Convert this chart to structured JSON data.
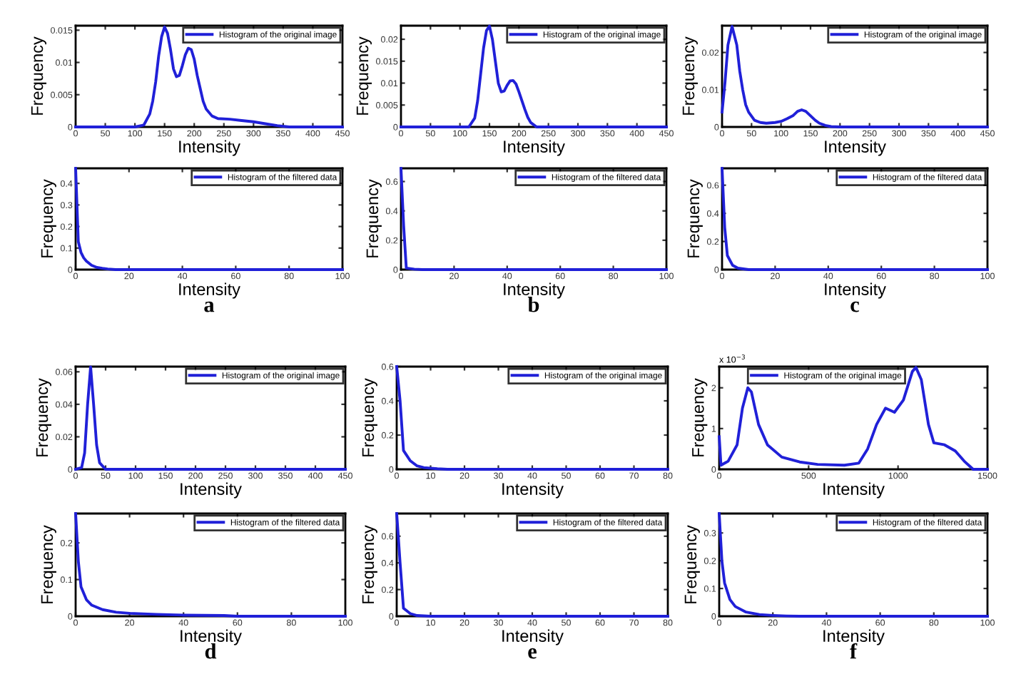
{
  "chart_data": [
    {
      "type": "line",
      "xlabel": "Intensity",
      "ylabel": "Frequency",
      "xlim": [
        0,
        450
      ],
      "xticks": [
        0,
        50,
        100,
        150,
        200,
        250,
        300,
        350,
        400,
        450
      ],
      "ylim": [
        0,
        0.0157
      ],
      "yticks": [
        0,
        0.005,
        0.01,
        0.015
      ],
      "grid": false,
      "legend": "top right",
      "series": [
        {
          "name": "Histogram of the original image",
          "color": "#2020d8",
          "x": [
            0,
            100,
            115,
            125,
            130,
            135,
            140,
            145,
            150,
            155,
            160,
            165,
            170,
            175,
            180,
            185,
            190,
            195,
            200,
            205,
            210,
            215,
            220,
            230,
            240,
            260,
            280,
            300,
            320,
            340,
            360,
            450
          ],
          "values": [
            0,
            0,
            0.0003,
            0.002,
            0.004,
            0.007,
            0.011,
            0.014,
            0.0155,
            0.0145,
            0.012,
            0.009,
            0.0078,
            0.008,
            0.0095,
            0.0112,
            0.0122,
            0.012,
            0.0105,
            0.008,
            0.006,
            0.004,
            0.0028,
            0.0017,
            0.0013,
            0.0012,
            0.001,
            0.0008,
            0.0005,
            0.0002,
            0,
            0
          ]
        }
      ]
    },
    {
      "type": "line",
      "xlabel": "Intensity",
      "ylabel": "Frequency",
      "xlim": [
        0,
        450
      ],
      "xticks": [
        0,
        50,
        100,
        150,
        200,
        250,
        300,
        350,
        400,
        450
      ],
      "ylim": [
        0,
        0.0231
      ],
      "yticks": [
        0,
        0.005,
        0.01,
        0.015,
        0.02
      ],
      "grid": false,
      "legend": "top right",
      "series": [
        {
          "name": "Histogram of the original image",
          "color": "#2020d8",
          "x": [
            0,
            115,
            125,
            130,
            135,
            140,
            145,
            150,
            155,
            160,
            165,
            170,
            175,
            180,
            185,
            190,
            195,
            200,
            205,
            210,
            215,
            220,
            230,
            450
          ],
          "values": [
            0,
            0,
            0.002,
            0.006,
            0.012,
            0.018,
            0.022,
            0.023,
            0.02,
            0.015,
            0.01,
            0.008,
            0.0082,
            0.0095,
            0.0105,
            0.0106,
            0.0098,
            0.008,
            0.006,
            0.004,
            0.0022,
            0.001,
            0,
            0
          ]
        }
      ]
    },
    {
      "type": "line",
      "xlabel": "Intensity",
      "ylabel": "Frequency",
      "xlim": [
        0,
        450
      ],
      "xticks": [
        0,
        50,
        100,
        150,
        200,
        250,
        300,
        350,
        400,
        450
      ],
      "ylim": [
        0,
        0.0272
      ],
      "yticks": [
        0,
        0.01,
        0.02
      ],
      "grid": false,
      "legend": "top right",
      "series": [
        {
          "name": "Histogram of the original image",
          "color": "#2020d8",
          "x": [
            0,
            5,
            10,
            17,
            25,
            30,
            35,
            40,
            45,
            55,
            65,
            75,
            90,
            100,
            110,
            120,
            128,
            135,
            142,
            150,
            158,
            165,
            175,
            185,
            200,
            450
          ],
          "values": [
            0.004,
            0.012,
            0.022,
            0.027,
            0.022,
            0.015,
            0.01,
            0.006,
            0.004,
            0.0018,
            0.0012,
            0.001,
            0.0012,
            0.0015,
            0.0022,
            0.003,
            0.0042,
            0.0046,
            0.0042,
            0.003,
            0.0018,
            0.001,
            0.0004,
            0.0001,
            0,
            0
          ]
        }
      ]
    },
    {
      "type": "line",
      "xlabel": "Intensity",
      "ylabel": "Frequency",
      "xlim": [
        0,
        100
      ],
      "xticks": [
        0,
        20,
        40,
        60,
        80,
        100
      ],
      "ylim": [
        0,
        0.47
      ],
      "yticks": [
        0,
        0.1,
        0.2,
        0.3,
        0.4
      ],
      "grid": false,
      "legend": "top right",
      "annotations": [
        "a"
      ],
      "series": [
        {
          "name": "Histogram of the filtered data",
          "color": "#2020d8",
          "x": [
            0,
            1,
            2,
            3,
            4,
            6,
            8,
            10,
            12,
            15,
            100
          ],
          "values": [
            0.47,
            0.13,
            0.08,
            0.055,
            0.04,
            0.02,
            0.01,
            0.006,
            0.003,
            0,
            0
          ]
        }
      ]
    },
    {
      "type": "line",
      "xlabel": "Intensity",
      "ylabel": "Frequency",
      "xlim": [
        0,
        100
      ],
      "xticks": [
        0,
        20,
        40,
        60,
        80,
        100
      ],
      "ylim": [
        0,
        0.69
      ],
      "yticks": [
        0,
        0.2,
        0.4,
        0.6
      ],
      "grid": false,
      "legend": "top right",
      "annotations": [
        "b"
      ],
      "series": [
        {
          "name": "Histogram of the filtered data",
          "color": "#2020d8",
          "x": [
            0,
            1,
            2,
            5,
            8,
            100
          ],
          "values": [
            0.69,
            0.3,
            0.01,
            0.003,
            0,
            0
          ]
        }
      ]
    },
    {
      "type": "line",
      "xlabel": "Intensity",
      "ylabel": "Frequency",
      "xlim": [
        0,
        100
      ],
      "xticks": [
        0,
        20,
        40,
        60,
        80,
        100
      ],
      "ylim": [
        0,
        0.72
      ],
      "yticks": [
        0,
        0.2,
        0.4,
        0.6
      ],
      "grid": false,
      "legend": "top right",
      "annotations": [
        "c"
      ],
      "series": [
        {
          "name": "Histogram of the filtered data",
          "color": "#2020d8",
          "x": [
            0,
            1,
            2,
            4,
            6,
            10,
            100
          ],
          "values": [
            0.72,
            0.3,
            0.1,
            0.03,
            0.01,
            0,
            0
          ]
        }
      ]
    },
    {
      "type": "line",
      "xlabel": "Intensity",
      "ylabel": "Frequency",
      "xlim": [
        0,
        450
      ],
      "xticks": [
        0,
        50,
        100,
        150,
        200,
        250,
        300,
        350,
        400,
        450
      ],
      "ylim": [
        0,
        0.0632
      ],
      "yticks": [
        0,
        0.02,
        0.04,
        0.06
      ],
      "grid": false,
      "legend": "top right",
      "series": [
        {
          "name": "Histogram of the original image",
          "color": "#2020d8",
          "x": [
            0,
            10,
            15,
            20,
            25,
            30,
            35,
            40,
            50,
            450
          ],
          "values": [
            0,
            0.001,
            0.01,
            0.04,
            0.063,
            0.04,
            0.015,
            0.004,
            0,
            0
          ]
        }
      ]
    },
    {
      "type": "line",
      "xlabel": "Intensity",
      "ylabel": "Frequency",
      "xlim": [
        0,
        80
      ],
      "xticks": [
        0,
        10,
        20,
        30,
        40,
        50,
        60,
        70,
        80
      ],
      "ylim": [
        0,
        0.6
      ],
      "yticks": [
        0,
        0.2,
        0.4,
        0.6
      ],
      "grid": false,
      "legend": "top right",
      "series": [
        {
          "name": "Histogram of the original image",
          "color": "#2020d8",
          "x": [
            0,
            1,
            2,
            4,
            6,
            8,
            12,
            15,
            80
          ],
          "values": [
            0.6,
            0.4,
            0.11,
            0.05,
            0.02,
            0.01,
            0.003,
            0,
            0
          ]
        }
      ]
    },
    {
      "type": "line",
      "xlabel": "Intensity",
      "ylabel": "Frequency",
      "xlim": [
        0,
        1500
      ],
      "xticks": [
        0,
        500,
        1000,
        1500
      ],
      "ylim": [
        0,
        2.52
      ],
      "yticks": [
        0,
        1,
        2
      ],
      "grid": false,
      "legend": "top",
      "annotations": [
        "x 10$^{−3}$"
      ],
      "series": [
        {
          "name": "Histogram of the original image",
          "color": "#2020d8",
          "x": [
            0,
            10,
            50,
            100,
            130,
            160,
            180,
            220,
            270,
            350,
            450,
            550,
            700,
            780,
            830,
            880,
            930,
            980,
            1030,
            1080,
            1100,
            1130,
            1170,
            1200,
            1260,
            1320,
            1370,
            1420,
            1500
          ],
          "values": [
            0.8,
            0.1,
            0.2,
            0.6,
            1.5,
            2.0,
            1.9,
            1.1,
            0.6,
            0.3,
            0.18,
            0.12,
            0.1,
            0.15,
            0.5,
            1.1,
            1.5,
            1.4,
            1.7,
            2.4,
            2.5,
            2.2,
            1.1,
            0.65,
            0.6,
            0.45,
            0.2,
            0,
            0
          ]
        }
      ]
    },
    {
      "type": "line",
      "xlabel": "Intensity",
      "ylabel": "Frequency",
      "xlim": [
        0,
        100
      ],
      "xticks": [
        0,
        20,
        40,
        60,
        80,
        100
      ],
      "ylim": [
        0,
        0.28
      ],
      "yticks": [
        0,
        0.1,
        0.2
      ],
      "grid": false,
      "legend": "top right",
      "annotations": [
        "d"
      ],
      "series": [
        {
          "name": "Histogram of the filtered data",
          "color": "#2020d8",
          "x": [
            0,
            1,
            2,
            4,
            6,
            10,
            15,
            20,
            30,
            40,
            55,
            60,
            100
          ],
          "values": [
            0.28,
            0.15,
            0.08,
            0.045,
            0.03,
            0.018,
            0.011,
            0.008,
            0.005,
            0.003,
            0.002,
            0,
            0
          ]
        }
      ]
    },
    {
      "type": "line",
      "xlabel": "Intensity",
      "ylabel": "Frequency",
      "xlim": [
        0,
        80
      ],
      "xticks": [
        0,
        10,
        20,
        30,
        40,
        50,
        60,
        70,
        80
      ],
      "ylim": [
        0,
        0.77
      ],
      "yticks": [
        0,
        0.2,
        0.4,
        0.6
      ],
      "grid": false,
      "legend": "top right",
      "annotations": [
        "e"
      ],
      "series": [
        {
          "name": "Histogram of the filtered data",
          "color": "#2020d8",
          "x": [
            0,
            1,
            2,
            4,
            6,
            10,
            80
          ],
          "values": [
            0.77,
            0.4,
            0.06,
            0.02,
            0.005,
            0,
            0
          ]
        }
      ]
    },
    {
      "type": "line",
      "xlabel": "Intensity",
      "ylabel": "Frequency",
      "xlim": [
        0,
        100
      ],
      "xticks": [
        0,
        20,
        40,
        60,
        80,
        100
      ],
      "ylim": [
        0,
        0.37
      ],
      "yticks": [
        0,
        0.1,
        0.2,
        0.3
      ],
      "grid": false,
      "legend": "top right",
      "annotations": [
        "f"
      ],
      "series": [
        {
          "name": "Histogram of the filtered data",
          "color": "#2020d8",
          "x": [
            0,
            1,
            2,
            4,
            6,
            10,
            15,
            20,
            25,
            30,
            100
          ],
          "values": [
            0.37,
            0.2,
            0.12,
            0.06,
            0.035,
            0.015,
            0.006,
            0.003,
            0.001,
            0,
            0
          ]
        }
      ]
    }
  ]
}
